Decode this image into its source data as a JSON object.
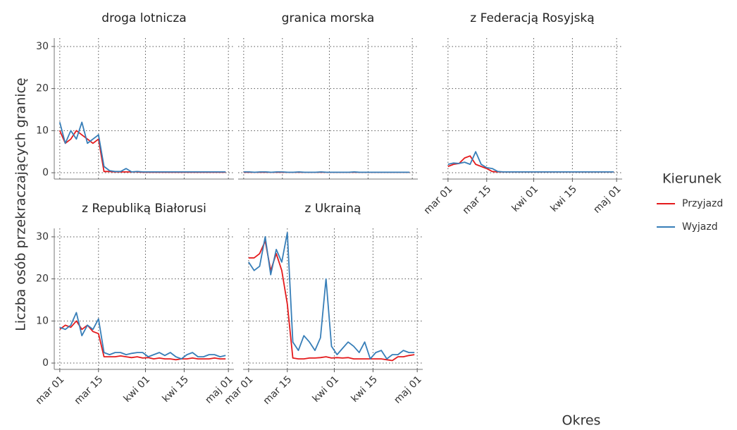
{
  "chart_data": [
    {
      "type": "line",
      "title": "droga lotnicza",
      "x": [
        0,
        2,
        4,
        6,
        8,
        10,
        12,
        14,
        16,
        18,
        20,
        22,
        24,
        26,
        28,
        30,
        32,
        34,
        36,
        38,
        40,
        42,
        44,
        46,
        48,
        50,
        52,
        54,
        56,
        58,
        60
      ],
      "series": [
        {
          "name": "Przyjazd",
          "color": "#e41a1c",
          "values": [
            10,
            7,
            8,
            10,
            9,
            8,
            7,
            8,
            0.3,
            0.3,
            0.2,
            0.2,
            0.2,
            0.2,
            0.2,
            0.1,
            0.1,
            0.1,
            0.1,
            0.1,
            0.1,
            0.1,
            0.1,
            0.1,
            0.1,
            0.1,
            0.1,
            0.1,
            0.1,
            0.1,
            0.1
          ]
        },
        {
          "name": "Wyjazd",
          "color": "#377eb8",
          "values": [
            12,
            7,
            10,
            8,
            12,
            7,
            8,
            9,
            1.5,
            0.5,
            0.3,
            0.3,
            1,
            0.2,
            0.3,
            0.2,
            0.2,
            0.2,
            0.2,
            0.2,
            0.2,
            0.2,
            0.2,
            0.2,
            0.2,
            0.2,
            0.2,
            0.2,
            0.2,
            0.2,
            0.2
          ]
        }
      ],
      "xlim": [
        -2,
        63
      ],
      "xticks": [
        {
          "value": 0,
          "label": "mar 01"
        },
        {
          "value": 14,
          "label": "mar 15"
        },
        {
          "value": 31,
          "label": "kwi 01"
        },
        {
          "value": 45,
          "label": "kwi 15"
        },
        {
          "value": 61,
          "label": "maj 01"
        }
      ],
      "ylim": [
        -1.5,
        32
      ],
      "yticks": [
        0,
        10,
        20,
        30
      ],
      "grid": true
    },
    {
      "type": "line",
      "title": "granica morska",
      "x": [
        0,
        2,
        4,
        6,
        8,
        10,
        12,
        14,
        16,
        18,
        20,
        22,
        24,
        26,
        28,
        30,
        32,
        34,
        36,
        38,
        40,
        42,
        44,
        46,
        48,
        50,
        52,
        54,
        56,
        58,
        60
      ],
      "series": [
        {
          "name": "Przyjazd",
          "color": "#e41a1c",
          "values": [
            0.1,
            0.1,
            0.1,
            0.1,
            0.1,
            0.1,
            0.1,
            0.1,
            0.1,
            0.1,
            0.1,
            0.1,
            0.1,
            0.1,
            0.1,
            0.1,
            0.1,
            0.1,
            0.1,
            0.1,
            0.1,
            0.1,
            0.1,
            0.1,
            0.1,
            0.1,
            0.1,
            0.1,
            0.1,
            0.1,
            0.1
          ]
        },
        {
          "name": "Wyjazd",
          "color": "#377eb8",
          "values": [
            0.2,
            0.2,
            0.1,
            0.2,
            0.2,
            0.1,
            0.2,
            0.2,
            0.1,
            0.1,
            0.2,
            0.1,
            0.1,
            0.1,
            0.2,
            0.1,
            0.1,
            0.1,
            0.1,
            0.1,
            0.2,
            0.1,
            0.1,
            0.1,
            0.1,
            0.1,
            0.1,
            0.1,
            0.1,
            0.1,
            0.1
          ]
        }
      ],
      "xlim": [
        -2,
        63
      ],
      "xticks": [
        {
          "value": 0,
          "label": "mar 01"
        },
        {
          "value": 14,
          "label": "mar 15"
        },
        {
          "value": 31,
          "label": "kwi 01"
        },
        {
          "value": 45,
          "label": "kwi 15"
        },
        {
          "value": 61,
          "label": "maj 01"
        }
      ],
      "ylim": [
        -1.5,
        32
      ],
      "yticks": [
        0,
        10,
        20,
        30
      ],
      "grid": true
    },
    {
      "type": "line",
      "title": "z Federacją Rosyjską",
      "x": [
        0,
        2,
        4,
        6,
        8,
        10,
        12,
        14,
        16,
        18,
        20,
        22,
        24,
        26,
        28,
        30,
        32,
        34,
        36,
        38,
        40,
        42,
        44,
        46,
        48,
        50,
        52,
        54,
        56,
        58,
        60
      ],
      "series": [
        {
          "name": "Przyjazd",
          "color": "#e41a1c",
          "values": [
            1.5,
            2,
            2.2,
            3.5,
            4,
            2,
            1.5,
            1,
            0.3,
            0.2,
            0.2,
            0.2,
            0.2,
            0.2,
            0.2,
            0.2,
            0.2,
            0.2,
            0.2,
            0.2,
            0.2,
            0.2,
            0.2,
            0.2,
            0.2,
            0.2,
            0.2,
            0.2,
            0.2,
            0.2,
            0.2
          ]
        },
        {
          "name": "Wyjazd",
          "color": "#377eb8",
          "values": [
            2,
            2.3,
            2.2,
            2.5,
            2,
            5,
            2,
            1.2,
            1,
            0.3,
            0.2,
            0.2,
            0.2,
            0.2,
            0.2,
            0.2,
            0.2,
            0.2,
            0.2,
            0.2,
            0.2,
            0.2,
            0.2,
            0.2,
            0.2,
            0.2,
            0.2,
            0.2,
            0.2,
            0.2,
            0.2
          ]
        }
      ],
      "xlim": [
        -2,
        63
      ],
      "xticks": [
        {
          "value": 0,
          "label": "mar 01"
        },
        {
          "value": 14,
          "label": "mar 15"
        },
        {
          "value": 31,
          "label": "kwi 01"
        },
        {
          "value": 45,
          "label": "kwi 15"
        },
        {
          "value": 61,
          "label": "maj 01"
        }
      ],
      "ylim": [
        -1.5,
        32
      ],
      "yticks": [
        0,
        10,
        20,
        30
      ],
      "grid": true
    },
    {
      "type": "line",
      "title": "z Republiką Białorusi",
      "x": [
        0,
        2,
        4,
        6,
        8,
        10,
        12,
        14,
        16,
        18,
        20,
        22,
        24,
        26,
        28,
        30,
        32,
        34,
        36,
        38,
        40,
        42,
        44,
        46,
        48,
        50,
        52,
        54,
        56,
        58,
        60
      ],
      "series": [
        {
          "name": "Przyjazd",
          "color": "#e41a1c",
          "values": [
            8,
            9,
            8.5,
            10,
            8,
            9,
            7.5,
            7,
            1.5,
            1.5,
            1.5,
            1.7,
            1.5,
            1.3,
            1.5,
            1.2,
            1.3,
            1,
            1.2,
            1,
            1,
            0.8,
            1,
            1,
            1.2,
            1,
            1,
            1,
            1.2,
            1,
            1
          ]
        },
        {
          "name": "Wyjazd",
          "color": "#377eb8",
          "values": [
            8.5,
            8,
            9,
            12,
            6.5,
            9,
            8,
            10.5,
            2.5,
            2,
            2.5,
            2.5,
            2,
            2.3,
            2.5,
            2.5,
            1.5,
            2,
            2.5,
            1.8,
            2.5,
            1.5,
            1,
            2,
            2.5,
            1.5,
            1.5,
            2,
            2,
            1.5,
            1.8
          ]
        }
      ],
      "xlim": [
        -2,
        63
      ],
      "xticks": [
        {
          "value": 0,
          "label": "mar 01"
        },
        {
          "value": 14,
          "label": "mar 15"
        },
        {
          "value": 31,
          "label": "kwi 01"
        },
        {
          "value": 45,
          "label": "kwi 15"
        },
        {
          "value": 61,
          "label": "maj 01"
        }
      ],
      "ylim": [
        -1.5,
        32
      ],
      "yticks": [
        0,
        10,
        20,
        30
      ],
      "grid": true
    },
    {
      "type": "line",
      "title": "z Ukrainą",
      "x": [
        0,
        2,
        4,
        6,
        8,
        10,
        12,
        14,
        16,
        18,
        20,
        22,
        24,
        26,
        28,
        30,
        32,
        34,
        36,
        38,
        40,
        42,
        44,
        46,
        48,
        50,
        52,
        54,
        56,
        58,
        60
      ],
      "series": [
        {
          "name": "Przyjazd",
          "color": "#e41a1c",
          "values": [
            25,
            25,
            26,
            29,
            22,
            26,
            22,
            14,
            1.2,
            1,
            1,
            1.2,
            1.2,
            1.3,
            1.5,
            1.2,
            1.3,
            1.2,
            1.3,
            1,
            1,
            1,
            1,
            1,
            1,
            0.8,
            0.6,
            1.5,
            1.5,
            1.8,
            2
          ]
        },
        {
          "name": "Wyjazd",
          "color": "#377eb8",
          "values": [
            24,
            22,
            23,
            30,
            21,
            27,
            24,
            31,
            5,
            3,
            6.5,
            5,
            3,
            6,
            20,
            4,
            2,
            3.5,
            5,
            4,
            2.5,
            5,
            1,
            2.5,
            3,
            1,
            2,
            2,
            3,
            2.5,
            2.5
          ]
        }
      ],
      "xlim": [
        -2,
        63
      ],
      "xticks": [
        {
          "value": 0,
          "label": "mar 01"
        },
        {
          "value": 14,
          "label": "mar 15"
        },
        {
          "value": 31,
          "label": "kwi 01"
        },
        {
          "value": 45,
          "label": "kwi 15"
        },
        {
          "value": 61,
          "label": "maj 01"
        }
      ],
      "ylim": [
        -1.5,
        32
      ],
      "yticks": [
        0,
        10,
        20,
        30
      ],
      "grid": true
    }
  ],
  "ylabel": "Liczba osób przekraczających granicę",
  "xlabel": "Okres",
  "legend_title": "Kierunek"
}
